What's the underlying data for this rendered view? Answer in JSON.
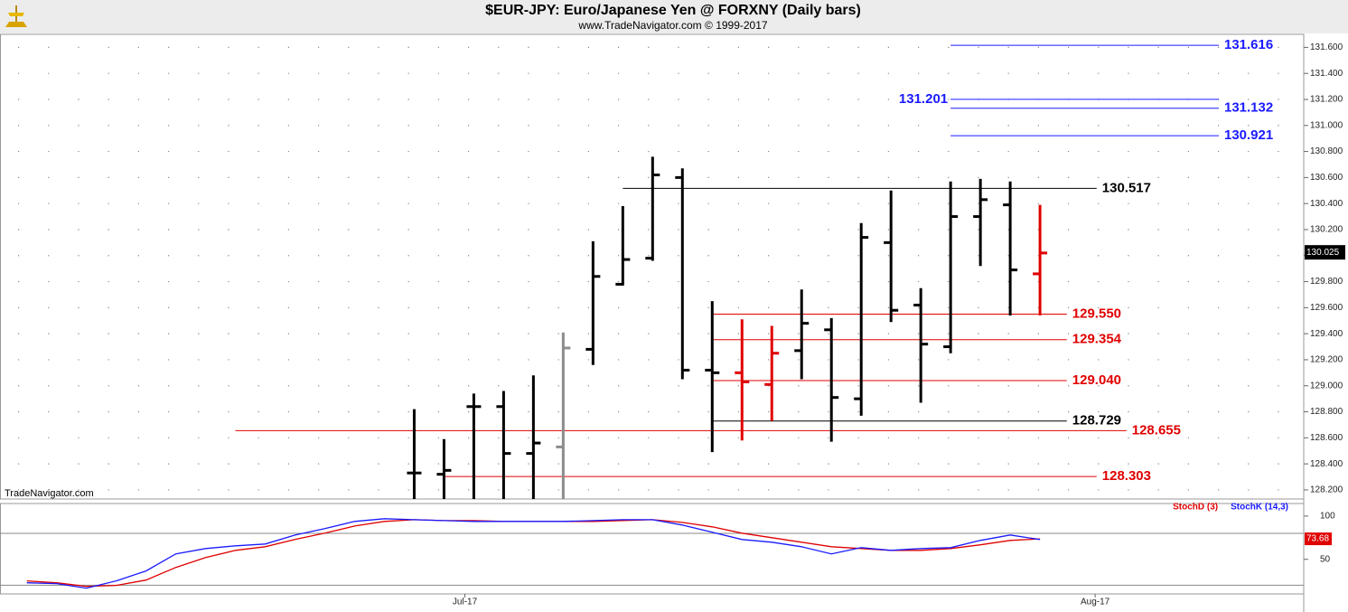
{
  "chart_data": [
    {
      "type": "ohlc",
      "title": "$EUR-JPY:  Euro/Japanese Yen @ FORXNY  (Daily bars)",
      "subtitle": "www.TradeNavigator.com © 1999-2017",
      "watermark": "TradeNavigator.com",
      "x": [
        0,
        1,
        2,
        3,
        4,
        5,
        6,
        7,
        8,
        9,
        10,
        11,
        12,
        13,
        14,
        15,
        16,
        17,
        18,
        19,
        20,
        21
      ],
      "xlim": [
        -13.9,
        29.85
      ],
      "open": [
        128.33,
        128.32,
        128.84,
        128.84,
        128.48,
        128.53,
        129.28,
        129.78,
        129.98,
        130.6,
        129.12,
        129.1,
        129.01,
        129.27,
        129.43,
        128.9,
        130.1,
        129.62,
        129.3,
        130.3,
        130.39,
        129.86
      ],
      "high": [
        128.82,
        128.59,
        128.94,
        128.96,
        129.08,
        129.41,
        130.11,
        130.38,
        130.76,
        130.67,
        129.65,
        129.51,
        129.46,
        129.74,
        129.52,
        130.25,
        130.5,
        129.75,
        130.57,
        130.59,
        130.57,
        130.39
      ],
      "low": [
        128.1,
        128.1,
        128.1,
        128.1,
        128.1,
        128.1,
        129.16,
        129.77,
        129.96,
        129.05,
        128.49,
        128.58,
        128.73,
        129.05,
        128.57,
        128.77,
        129.49,
        128.87,
        129.25,
        129.92,
        129.54,
        129.54
      ],
      "close": [
        128.33,
        128.35,
        128.84,
        128.48,
        128.56,
        129.29,
        129.84,
        129.97,
        130.62,
        129.12,
        129.1,
        129.03,
        129.25,
        129.48,
        128.91,
        130.14,
        129.58,
        129.32,
        130.3,
        130.43,
        129.89,
        130.02
      ],
      "colors": [
        "#000000",
        "#000000",
        "#000000",
        "#000000",
        "#000000",
        "#8c8c8c",
        "#000000",
        "#000000",
        "#000000",
        "#000000",
        "#000000",
        "#e00000",
        "#e00000",
        "#000000",
        "#000000",
        "#000000",
        "#000000",
        "#000000",
        "#000000",
        "#000000",
        "#000000",
        "#e00000"
      ],
      "ylim": [
        128.13,
        131.7
      ],
      "yticks": [
        {
          "value": 128.2,
          "label": "128.200"
        },
        {
          "value": 128.4,
          "label": "128.400"
        },
        {
          "value": 128.6,
          "label": "128.600"
        },
        {
          "value": 128.8,
          "label": "128.800"
        },
        {
          "value": 129,
          "label": "129.000"
        },
        {
          "value": 129.2,
          "label": "129.200"
        },
        {
          "value": 129.4,
          "label": "129.400"
        },
        {
          "value": 129.6,
          "label": "129.600"
        },
        {
          "value": 129.8,
          "label": "129.800"
        },
        {
          "value": 130,
          "label": "130.000"
        },
        {
          "value": 130.2,
          "label": "130.200"
        },
        {
          "value": 130.4,
          "label": "130.400"
        },
        {
          "value": 130.6,
          "label": "130.600"
        },
        {
          "value": 130.8,
          "label": "130.800"
        },
        {
          "value": 131,
          "label": "131.000"
        },
        {
          "value": 131.2,
          "label": "131.200"
        },
        {
          "value": 131.4,
          "label": "131.400"
        },
        {
          "value": 131.6,
          "label": "131.600"
        }
      ],
      "grid": true,
      "levels": [
        {
          "value": 131.616,
          "color": "#1a1aff",
          "from": 18,
          "to": 27,
          "label_side": "right"
        },
        {
          "value": 131.201,
          "color": "#1a1aff",
          "from": 18,
          "to": 27,
          "label_side": "left"
        },
        {
          "value": 131.132,
          "color": "#1a1aff",
          "from": 18,
          "to": 27,
          "label_side": "right"
        },
        {
          "value": 130.921,
          "color": "#1a1aff",
          "from": 18,
          "to": 27,
          "label_side": "right"
        },
        {
          "value": 130.517,
          "color": "#000000",
          "from": 7,
          "to": 22.9,
          "label_side": "right"
        },
        {
          "value": 129.55,
          "label": "129.550",
          "color": "#e00000",
          "from": 10,
          "to": 21.9,
          "label_side": "right"
        },
        {
          "value": 129.354,
          "color": "#e00000",
          "from": 10,
          "to": 21.9,
          "label_side": "right"
        },
        {
          "value": 129.04,
          "label": "129.040",
          "color": "#e00000",
          "from": 10,
          "to": 21.9,
          "label_side": "right"
        },
        {
          "value": 128.729,
          "color": "#000000",
          "from": 10,
          "to": 21.9,
          "label_side": "right"
        },
        {
          "value": 128.655,
          "color": "#e00000",
          "from": -6,
          "to": 23.9,
          "label_side": "right"
        },
        {
          "value": 128.303,
          "color": "#e00000",
          "from": 1,
          "to": 22.9,
          "label_side": "right"
        }
      ],
      "last_value": 130.025
    },
    {
      "type": "line",
      "x": [
        -13,
        -12,
        -11,
        -10,
        -9,
        -8,
        -7,
        -6,
        -5,
        -4,
        -3,
        -2,
        -1,
        0,
        1,
        2,
        3,
        4,
        5,
        6,
        7,
        8,
        9,
        10,
        11,
        12,
        13,
        14,
        15,
        16,
        17,
        18,
        19,
        20,
        21
      ],
      "xlim": [
        -13.9,
        29.85
      ],
      "xticks": [
        {
          "value": 1.7,
          "label": "Jul-17"
        },
        {
          "value": 22.85,
          "label": "Aug-17"
        }
      ],
      "ylim": [
        10,
        114.5
      ],
      "yticks": [
        100,
        50
      ],
      "hlines": [
        80,
        20
      ],
      "legend": "top-right",
      "series": [
        {
          "name": "StochD (3)",
          "color": "#e00000",
          "values": [
            25,
            22.9,
            18.8,
            19.8,
            26,
            40.6,
            52,
            60.4,
            64.6,
            73,
            80.2,
            88.5,
            93.8,
            95.8,
            94.8,
            94.8,
            93.8,
            93.8,
            93.8,
            93.8,
            94.8,
            95.8,
            92.7,
            87.5,
            80.2,
            75,
            69.8,
            64.6,
            62.5,
            60.4,
            60.4,
            62.5,
            66.7,
            71.9,
            73.68
          ]
        },
        {
          "name": "StochK (14,3)",
          "color": "#1a1aff",
          "values": [
            22.9,
            21.9,
            16.7,
            25,
            36.5,
            56.3,
            62.5,
            65.6,
            67.7,
            78,
            85.4,
            93.8,
            96.9,
            95.8,
            94.8,
            93.8,
            93.8,
            93.8,
            93.8,
            94.8,
            95.8,
            95.8,
            89.6,
            81.3,
            72.9,
            69.8,
            64.6,
            56.3,
            63.5,
            60.4,
            62.5,
            63.5,
            71.9,
            78.1,
            72.9
          ]
        }
      ],
      "last_value": 73.68
    }
  ]
}
